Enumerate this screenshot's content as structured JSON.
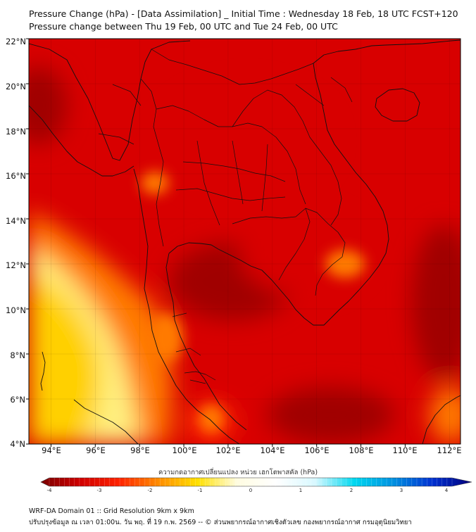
{
  "header": {
    "title_line1": "Pressure Change (hPa) - [Data Assimilation] _ Initial Time : Wednesday 18 Feb, 18 UTC FCST+120",
    "title_line2": "Pressure change between Thu 19 Feb, 00 UTC and Tue 24 Feb, 00 UTC"
  },
  "map": {
    "lat_labels": [
      "22°N",
      "20°N",
      "18°N",
      "16°N",
      "14°N",
      "12°N",
      "10°N",
      "8°N",
      "6°N",
      "4°N"
    ],
    "lon_labels": [
      "94°E",
      "96°E",
      "98°E",
      "100°E",
      "102°E",
      "104°E",
      "106°E",
      "108°E",
      "110°E",
      "112°E"
    ],
    "lat_range": [
      4,
      22
    ],
    "lon_range": [
      93,
      112.5
    ],
    "field_colors": {
      "deep_drop": "#a00000",
      "strong_drop": "#d80000",
      "moderate_drop": "#ff2a00",
      "light_drop": "#ff7a00",
      "slight_drop": "#ffd000",
      "minimal_drop": "#fff080"
    },
    "coastline_color": "#111111"
  },
  "colorbar": {
    "label": "ความกดอากาศเปลี่ยนแปลง หน่วย เฮกโตพาสคัล (hPa)",
    "ticks": [
      "-4",
      "-3",
      "-2",
      "-1",
      "0",
      "1",
      "2",
      "3",
      "4"
    ],
    "range": [
      -4,
      4
    ],
    "colors": [
      "#7a0000",
      "#d00000",
      "#ff2200",
      "#ff8c00",
      "#ffe000",
      "#fffce0",
      "#ffffff",
      "#d8f8ff",
      "#00d8f0",
      "#0090e0",
      "#0030d0",
      "#00007a"
    ]
  },
  "footer": {
    "line1": "WRF-DA Domain 01 :: Grid Resolution 9km x 9km",
    "line2": "ปรับปรุงข้อมูล ณ เวลา 01:00น. วัน พฤ. ที่ 19 ก.พ. 2569 -- © ส่วนพยากรณ์อากาศเชิงตัวเลข กองพยากรณ์อากาศ กรมอุตุนิยมวิทยา"
  }
}
